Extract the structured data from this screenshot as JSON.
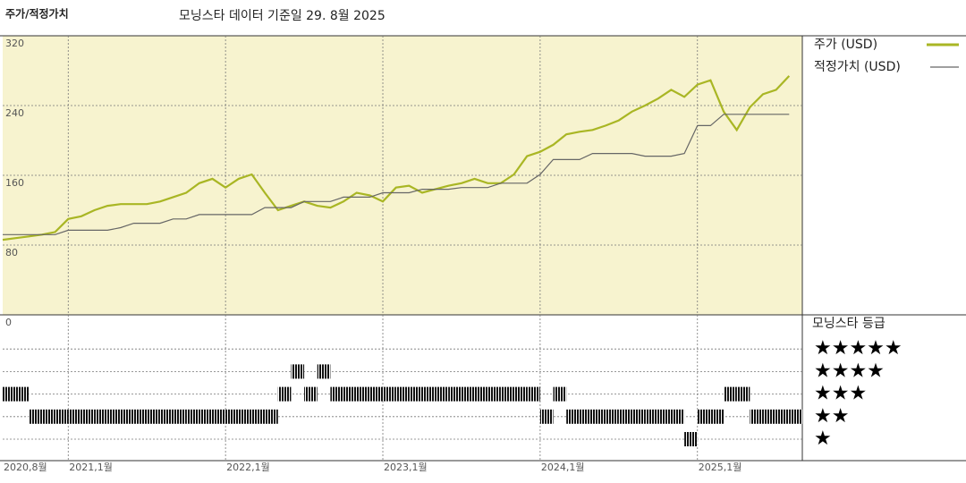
{
  "chart_data": {
    "type": "line",
    "title": "주가/적정가치",
    "subtitle": "모닝스타 데이터 기준일 29. 8월 2025",
    "x": [
      "2020-08",
      "2020-09",
      "2020-10",
      "2020-11",
      "2020-12",
      "2021-01",
      "2021-02",
      "2021-03",
      "2021-04",
      "2021-05",
      "2021-06",
      "2021-07",
      "2021-08",
      "2021-09",
      "2021-10",
      "2021-11",
      "2021-12",
      "2022-01",
      "2022-02",
      "2022-03",
      "2022-04",
      "2022-05",
      "2022-06",
      "2022-07",
      "2022-08",
      "2022-09",
      "2022-10",
      "2022-11",
      "2022-12",
      "2023-01",
      "2023-02",
      "2023-03",
      "2023-04",
      "2023-05",
      "2023-06",
      "2023-07",
      "2023-08",
      "2023-09",
      "2023-10",
      "2023-11",
      "2023-12",
      "2024-01",
      "2024-02",
      "2024-03",
      "2024-04",
      "2024-05",
      "2024-06",
      "2024-07",
      "2024-08",
      "2024-09",
      "2024-10",
      "2024-11",
      "2024-12",
      "2025-01",
      "2025-02",
      "2025-03",
      "2025-04",
      "2025-05",
      "2025-06",
      "2025-07",
      "2025-08"
    ],
    "xlim": [
      "2020-08",
      "2025-09"
    ],
    "xticks": [
      {
        "value": "2020-08",
        "label": "2020,8월"
      },
      {
        "value": "2021-01",
        "label": "2021,1월"
      },
      {
        "value": "2022-01",
        "label": "2022,1월"
      },
      {
        "value": "2023-01",
        "label": "2023,1월"
      },
      {
        "value": "2024-01",
        "label": "2024,1월"
      },
      {
        "value": "2025-01",
        "label": "2025,1월"
      }
    ],
    "ylim": [
      0,
      320
    ],
    "yticks": [
      0,
      80,
      160,
      240,
      320
    ],
    "grid": true,
    "series": [
      {
        "name": "주가 (USD)",
        "color": "#a9b624",
        "values": [
          86,
          88,
          90,
          92,
          95,
          110,
          113,
          120,
          125,
          127,
          127,
          127,
          130,
          135,
          140,
          151,
          156,
          146,
          156,
          161,
          140,
          120,
          125,
          130,
          125,
          123,
          130,
          140,
          137,
          130,
          146,
          148,
          140,
          144,
          148,
          151,
          156,
          151,
          151,
          161,
          182,
          187,
          195,
          207,
          210,
          212,
          217,
          223,
          233,
          240,
          248,
          258,
          250,
          264,
          269,
          233,
          212,
          238,
          253,
          258,
          274
        ]
      },
      {
        "name": "적정가치 (USD)",
        "color": "#666666",
        "values": [
          92,
          92,
          92,
          92,
          92,
          97,
          97,
          97,
          97,
          100,
          105,
          105,
          105,
          110,
          110,
          115,
          115,
          115,
          115,
          115,
          123,
          123,
          123,
          130,
          130,
          130,
          135,
          135,
          135,
          140,
          140,
          140,
          144,
          144,
          144,
          146,
          146,
          146,
          151,
          151,
          151,
          161,
          178,
          178,
          178,
          185,
          185,
          185,
          185,
          182,
          182,
          182,
          185,
          217,
          217,
          230,
          230,
          230,
          230,
          230,
          230
        ]
      }
    ],
    "rating_title": "모닝스타 등급",
    "rating_ticks": [
      {
        "value": 5,
        "label": "★★★★★"
      },
      {
        "value": 4,
        "label": "★★★★"
      },
      {
        "value": 3,
        "label": "★★★"
      },
      {
        "value": 2,
        "label": "★★"
      },
      {
        "value": 1,
        "label": "★"
      }
    ],
    "ratings": [
      3,
      3,
      2,
      2,
      2,
      2,
      2,
      2,
      2,
      2,
      2,
      2,
      2,
      2,
      2,
      2,
      2,
      2,
      2,
      2,
      2,
      3,
      4,
      3,
      4,
      3,
      3,
      3,
      3,
      3,
      3,
      3,
      3,
      3,
      3,
      3,
      3,
      3,
      3,
      3,
      3,
      2,
      3,
      2,
      2,
      2,
      2,
      2,
      2,
      2,
      2,
      2,
      1,
      2,
      2,
      3,
      3,
      2,
      2,
      2,
      2
    ]
  }
}
